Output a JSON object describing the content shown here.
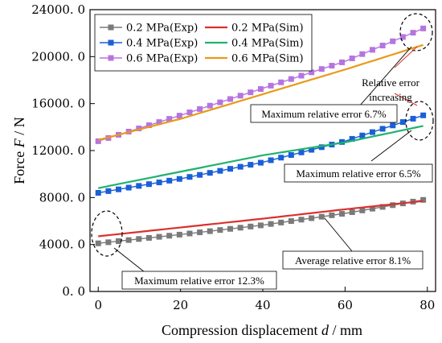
{
  "chart_data": {
    "type": "line",
    "xlabel": "Compression displacement",
    "xlabel_var": "d",
    "xlabel_unit": " / mm",
    "ylabel": "Force",
    "ylabel_var": "F",
    "ylabel_unit": " / N",
    "xlim": [
      -2,
      82
    ],
    "ylim": [
      0,
      24000
    ],
    "x_ticks": [
      {
        "value": 0,
        "label": "0"
      },
      {
        "value": 20,
        "label": "20"
      },
      {
        "value": 40,
        "label": "40"
      },
      {
        "value": 60,
        "label": "60"
      },
      {
        "value": 80,
        "label": "80"
      }
    ],
    "y_ticks": [
      {
        "value": 0,
        "label": "0. 0"
      },
      {
        "value": 4000,
        "label": "4000. 0"
      },
      {
        "value": 8000,
        "label": "8000. 0"
      },
      {
        "value": 12000,
        "label": "12000. 0"
      },
      {
        "value": 16000,
        "label": "16000. 0"
      },
      {
        "value": 20000,
        "label": "20000. 0"
      },
      {
        "value": 24000,
        "label": "24000. 0"
      }
    ],
    "legend_position": "top-left",
    "series": [
      {
        "name": "0.2 MPa(Exp)",
        "kind": "exp",
        "color": "#7a7a7a",
        "marker": "square",
        "x": [
          0,
          20,
          40,
          60,
          79
        ],
        "y": [
          4100,
          4850,
          5650,
          6650,
          7800
        ]
      },
      {
        "name": "0.2 MPa(Sim)",
        "kind": "sim",
        "color": "#d9312f",
        "x": [
          0,
          20,
          40,
          60,
          79
        ],
        "y": [
          4700,
          5450,
          6200,
          7000,
          7700
        ]
      },
      {
        "name": "0.4 MPa(Exp)",
        "kind": "exp",
        "color": "#1a5fd6",
        "marker": "square",
        "x": [
          0,
          20,
          40,
          60,
          79
        ],
        "y": [
          8400,
          9600,
          11000,
          12800,
          15000
        ]
      },
      {
        "name": "0.4 MPa(Sim)",
        "kind": "sim",
        "color": "#1fb36b",
        "x": [
          0,
          20,
          40,
          60,
          79
        ],
        "y": [
          8800,
          10200,
          11600,
          12700,
          14100
        ]
      },
      {
        "name": "0.6 MPa(Exp)",
        "kind": "exp",
        "color": "#b674e0",
        "marker": "square",
        "x": [
          0,
          20,
          40,
          60,
          79
        ],
        "y": [
          12800,
          15000,
          17300,
          19600,
          22400
        ]
      },
      {
        "name": "0.6 MPa(Sim)",
        "kind": "sim",
        "color": "#e89a1a",
        "x": [
          0,
          20,
          40,
          60,
          79
        ],
        "y": [
          12900,
          14700,
          16800,
          18900,
          21000
        ]
      }
    ],
    "annotations": [
      {
        "text": "Maximum relative error 6.7%"
      },
      {
        "text": "Relative error"
      },
      {
        "text": "increasing"
      },
      {
        "text": "Maximum relative error 6.5%"
      },
      {
        "text": "Average relative error 8.1%"
      },
      {
        "text": "Maximum relative error 12.3%"
      }
    ]
  }
}
